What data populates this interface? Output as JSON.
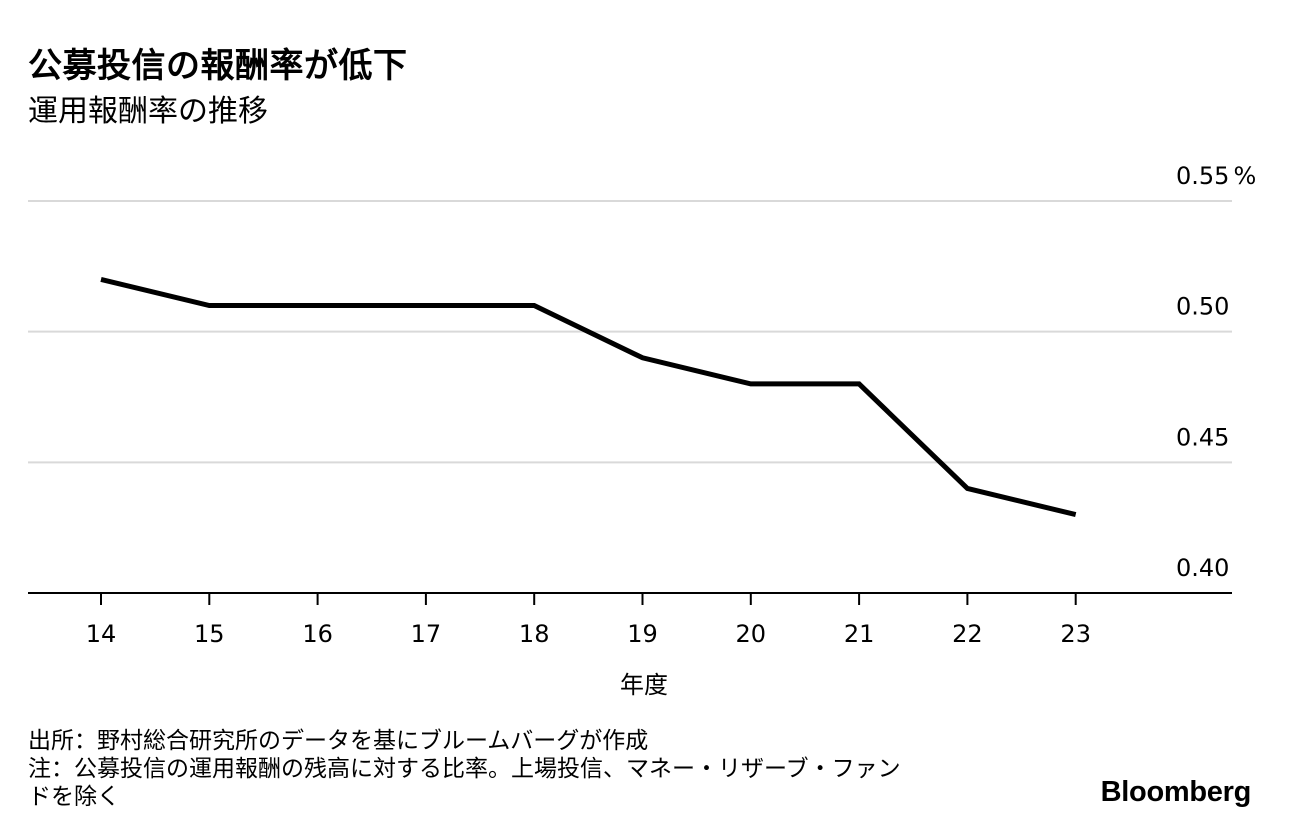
{
  "title": "公募投信の報酬率が低下",
  "subtitle": "運用報酬率の推移",
  "chart_data": {
    "type": "line",
    "x": [
      "14",
      "15",
      "16",
      "17",
      "18",
      "19",
      "20",
      "21",
      "22",
      "23"
    ],
    "series": [
      {
        "values": [
          0.52,
          0.51,
          0.51,
          0.51,
          0.51,
          0.49,
          0.48,
          0.48,
          0.44,
          0.43
        ]
      }
    ],
    "xlabel": "年度",
    "ylabel": "",
    "ylim": [
      0.4,
      0.55
    ],
    "y_ticks": [
      "0.40",
      "0.45",
      "0.50",
      "0.55"
    ],
    "y_unit": "%",
    "y_axis_side": "right",
    "grid": true,
    "line_color": "#000000",
    "grid_color": "#d9d9d9"
  },
  "notes": {
    "source": "出所：野村総合研究所のデータを基にブルームバーグが作成",
    "note_line1": "注：公募投信の運用報酬の残高に対する比率。上場投信、マネー・リザーブ・ファン",
    "note_line2": "ドを除く"
  },
  "brand": "Bloomberg"
}
